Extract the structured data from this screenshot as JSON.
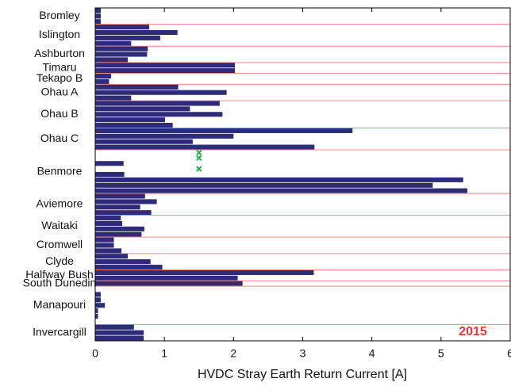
{
  "chart_data": {
    "type": "grouped-hbar",
    "x_label": "HVDC Stray Earth Return Current [A]",
    "annotation": "2015",
    "bar_color": "#2e2b7a",
    "separator_color": "#f08a8a",
    "marker_color": "#22b14c",
    "annotation_color": "#e8372f",
    "xlim": [
      0,
      6
    ],
    "xticks": [
      0,
      1,
      2,
      3,
      4,
      5,
      6
    ],
    "groups": [
      {
        "name": "Bromley",
        "values": [
          0.08,
          0.08,
          0.08
        ]
      },
      {
        "name": "Islington",
        "values": [
          0.78,
          1.19,
          0.94,
          0.52
        ]
      },
      {
        "name": "Ashburton",
        "values": [
          0.76,
          0.75,
          0.47
        ]
      },
      {
        "name": "Timaru",
        "values": [
          2.02,
          2.02
        ]
      },
      {
        "name": "Tekapo B",
        "values": [
          0.23,
          0.2
        ]
      },
      {
        "name": "Ohau A",
        "values": [
          1.2,
          1.9,
          0.52
        ]
      },
      {
        "name": "Ohau B",
        "values": [
          1.8,
          1.37,
          1.84,
          1.01,
          1.12
        ]
      },
      {
        "name": "Ohau C",
        "values": [
          3.72,
          2.0,
          1.41,
          3.17
        ]
      },
      {
        "name": "Benmore",
        "values": [
          null,
          null,
          0.41,
          null,
          0.42,
          5.32,
          4.88,
          5.38
        ],
        "marker_values": [
          1.5,
          1.5,
          null,
          1.5,
          null,
          null,
          null,
          null
        ]
      },
      {
        "name": "Aviemore",
        "values": [
          0.72,
          0.89,
          0.65,
          0.81
        ]
      },
      {
        "name": "Waitaki",
        "values": [
          0.37,
          0.39,
          0.71,
          0.67
        ]
      },
      {
        "name": "Cromwell",
        "values": [
          0.27,
          0.27,
          0.38
        ]
      },
      {
        "name": "Clyde",
        "values": [
          0.47,
          0.8,
          0.97
        ]
      },
      {
        "name": "Halfway Bush",
        "values": [
          3.16,
          2.06
        ]
      },
      {
        "name": "South Dunedin",
        "values": [
          2.13
        ]
      },
      {
        "name": "Manapouri",
        "values": [
          null,
          0.08,
          0.08,
          0.14,
          0.04,
          0.04,
          null
        ]
      },
      {
        "name": "Invercargill",
        "values": [
          0.56,
          0.7,
          0.7
        ]
      }
    ]
  }
}
